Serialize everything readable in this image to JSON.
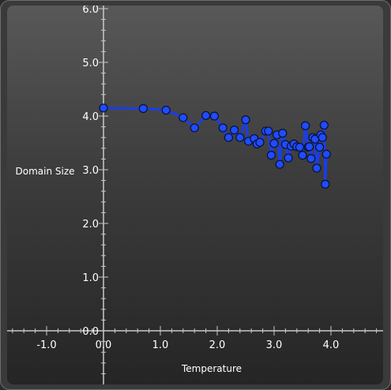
{
  "chart_data": {
    "type": "line",
    "xlabel": "Temperature",
    "ylabel": "Domain Size",
    "xlim": [
      -1.6,
      4.9
    ],
    "ylim": [
      -0.9,
      6.0
    ],
    "x_ticks": [
      "-1.0",
      "0.0",
      "1.0",
      "2.0",
      "3.0",
      "4.0"
    ],
    "y_ticks": [
      "0.0",
      "1.0",
      "2.0",
      "3.0",
      "4.0",
      "5.0",
      "6.0"
    ],
    "grid": false,
    "colors": {
      "line": "#1a3de8",
      "marker_fill": "#1f4cff",
      "marker_edge": "#0a1030",
      "axis": "#c8c8c8"
    },
    "series": [
      {
        "x": [
          0.0,
          0.7,
          1.1,
          1.4,
          1.6,
          1.8,
          1.95,
          2.1,
          2.2,
          2.3,
          2.4,
          2.5,
          2.55,
          2.65,
          2.7,
          2.75,
          2.85,
          2.9,
          2.95,
          3.0,
          3.05,
          3.1,
          3.15,
          3.2,
          3.25,
          3.3,
          3.35,
          3.4,
          3.45,
          3.5,
          3.55,
          3.6,
          3.62,
          3.65,
          3.68,
          3.72,
          3.75,
          3.8,
          3.82,
          3.85,
          3.88,
          3.9,
          3.92
        ],
        "y": [
          4.15,
          4.14,
          4.11,
          3.97,
          3.78,
          4.01,
          4.0,
          3.78,
          3.6,
          3.74,
          3.6,
          3.93,
          3.53,
          3.58,
          3.48,
          3.51,
          3.72,
          3.72,
          3.27,
          3.49,
          3.65,
          3.1,
          3.68,
          3.47,
          3.22,
          3.44,
          3.48,
          3.43,
          3.42,
          3.27,
          3.82,
          3.42,
          3.43,
          3.21,
          3.6,
          3.57,
          3.03,
          3.42,
          3.65,
          3.6,
          3.83,
          2.73,
          3.29
        ]
      }
    ]
  }
}
